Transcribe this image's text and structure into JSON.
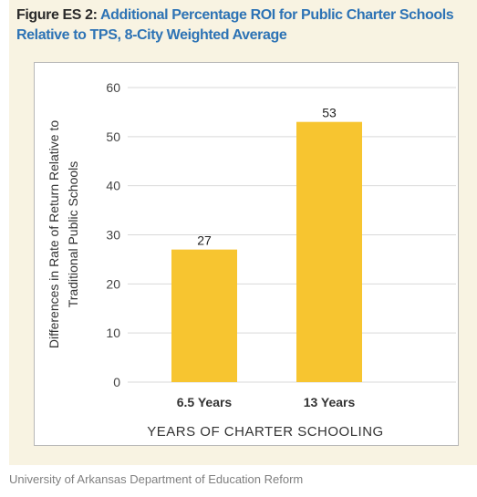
{
  "figure": {
    "label": "Figure ES 2:",
    "title": "Additional Percentage ROI for Public Charter Schools Relative to TPS, 8-City Weighted Average"
  },
  "source": "University of Arkansas Department of Education Reform",
  "colors": {
    "bar": "#f7c530",
    "title_accent": "#2d73b5",
    "panel": "#f8f3e2",
    "grid": "#d9d9d9"
  },
  "chart_data": {
    "type": "bar",
    "categories": [
      "6.5 Years",
      "13 Years"
    ],
    "values": [
      27,
      53
    ],
    "data_labels": [
      "27",
      "53"
    ],
    "ylabel_line1": "Differences in Rate of Return Relative to",
    "ylabel_line2": "Traditional Public Schools",
    "xlabel": "YEARS OF CHARTER SCHOOLING",
    "ylim": [
      0,
      60
    ],
    "yticks": [
      "0",
      "10",
      "20",
      "30",
      "40",
      "50",
      "60"
    ],
    "grid": true,
    "legend": "none"
  }
}
